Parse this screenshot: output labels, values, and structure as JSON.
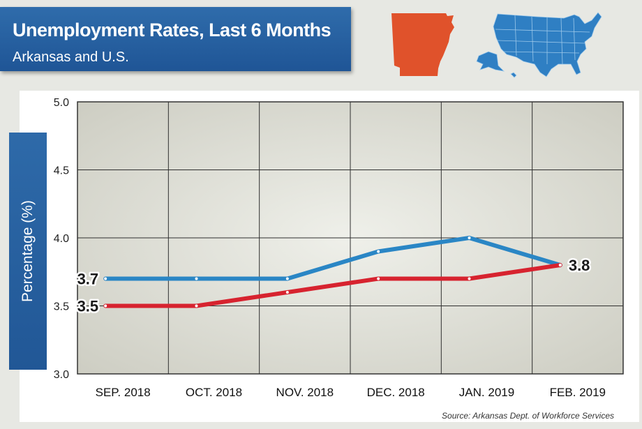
{
  "header": {
    "title": "Unemployment Rates, Last 6 Months",
    "subtitle": "Arkansas and U.S."
  },
  "maps": {
    "state_icon": "arkansas-map-icon",
    "state_color": "#e0522b",
    "country_icon": "us-map-icon",
    "country_color": "#2f7fc3"
  },
  "footer": {
    "source": "Source: Arkansas Dept. of Workforce Services"
  },
  "chart_data": {
    "type": "line",
    "title": "Unemployment Rates, Last 6 Months",
    "subtitle": "Arkansas and U.S.",
    "xlabel": "",
    "ylabel": "Percentage (%)",
    "ylim": [
      3.0,
      5.0
    ],
    "yticks": [
      "3.0",
      "3.5",
      "4.0",
      "4.5",
      "5.0"
    ],
    "grid": true,
    "categories": [
      "SEP. 2018",
      "OCT. 2018",
      "NOV. 2018",
      "DEC. 2018",
      "JAN. 2019",
      "FEB. 2019"
    ],
    "series": [
      {
        "name": "U.S.",
        "color": "#2a86c5",
        "values": [
          3.7,
          3.7,
          3.7,
          3.9,
          4.0,
          3.8
        ]
      },
      {
        "name": "Arkansas",
        "color": "#d7232f",
        "values": [
          3.5,
          3.5,
          3.6,
          3.7,
          3.7,
          3.8
        ]
      }
    ],
    "annotations": {
      "start_us": "3.7",
      "start_ar": "3.5",
      "end_both": "3.8"
    }
  }
}
